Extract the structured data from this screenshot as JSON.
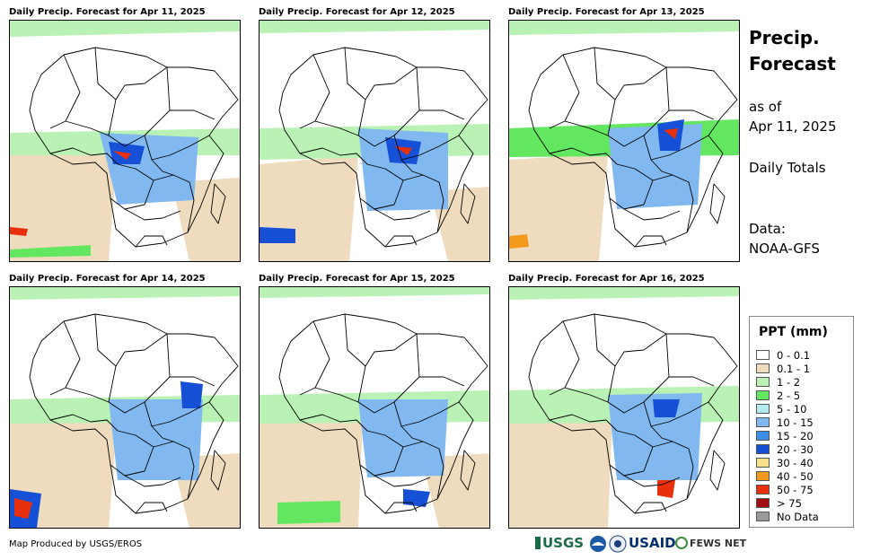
{
  "panels": [
    {
      "title": "Daily Precip. Forecast for Apr 11, 2025"
    },
    {
      "title": "Daily Precip. Forecast for Apr 12, 2025"
    },
    {
      "title": "Daily Precip. Forecast for Apr 13, 2025"
    },
    {
      "title": "Daily Precip. Forecast for Apr 14, 2025"
    },
    {
      "title": "Daily Precip. Forecast for Apr 15, 2025"
    },
    {
      "title": "Daily Precip. Forecast for Apr 16, 2025"
    }
  ],
  "side": {
    "title_line1": "Precip.",
    "title_line2": "Forecast",
    "asof_line1": "as of",
    "asof_line2": "Apr 11, 2025",
    "totals": "Daily Totals",
    "data_line1": "Data:",
    "data_line2": "NOAA-GFS"
  },
  "legend": {
    "title": "PPT (mm)",
    "items": [
      {
        "label": "0 - 0.1",
        "color": "#ffffff"
      },
      {
        "label": "0.1 - 1",
        "color": "#efdcbe"
      },
      {
        "label": "1 - 2",
        "color": "#b9f2b4"
      },
      {
        "label": "2 - 5",
        "color": "#63e660"
      },
      {
        "label": "5 - 10",
        "color": "#b3ecf0"
      },
      {
        "label": "10 - 15",
        "color": "#80b8ef"
      },
      {
        "label": "15 - 20",
        "color": "#3b8fe8"
      },
      {
        "label": "20 - 30",
        "color": "#1650d6"
      },
      {
        "label": "30 - 40",
        "color": "#f8e08c"
      },
      {
        "label": "40 - 50",
        "color": "#f39a1c"
      },
      {
        "label": "50 - 75",
        "color": "#e8310c"
      },
      {
        "label": "> 75",
        "color": "#a01010"
      },
      {
        "label": "No Data",
        "color": "#999999"
      }
    ]
  },
  "footer": {
    "credit": "Map Produced by USGS/EROS",
    "logo_usgs": "USGS",
    "logo_usaid": "USAID",
    "logo_fewsnet": "FEWS NET"
  }
}
